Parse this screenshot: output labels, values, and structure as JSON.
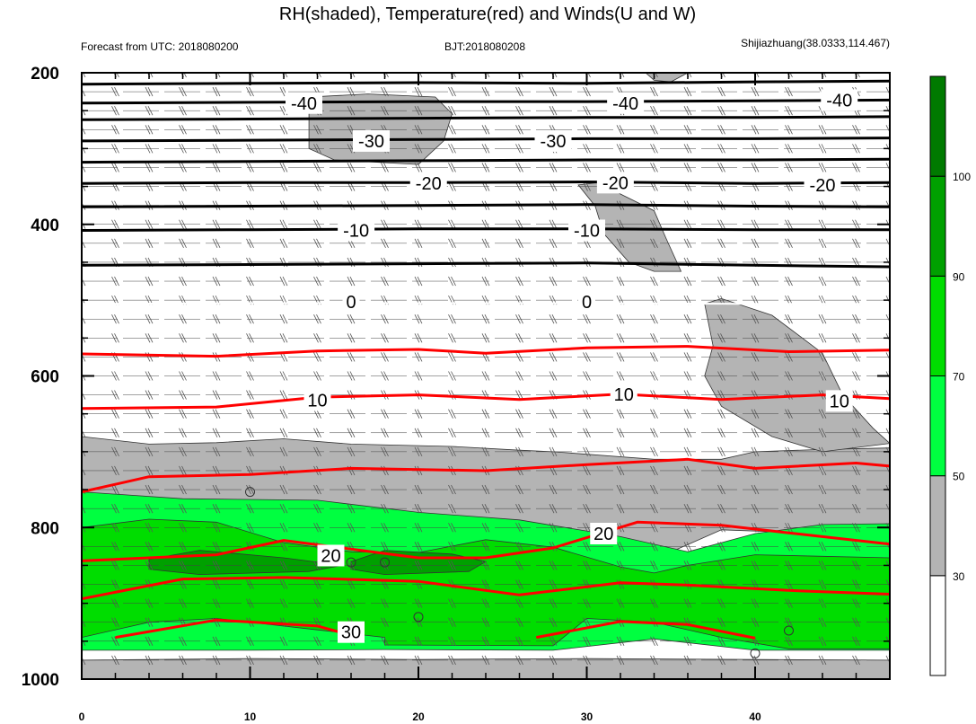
{
  "chart_data": {
    "type": "heatmap",
    "title": "RH(shaded), Temperature(red) and Winds(U and W)",
    "subtitle_left": "Forecast from UTC: 2018080200",
    "subtitle_center": "BJT:2018080208",
    "subtitle_right": "Shijiazhuang(38.0333,114.467)",
    "x_ticks": [
      "0",
      "10",
      "20",
      "30",
      "40"
    ],
    "x_tick_values": [
      0,
      10,
      20,
      30,
      40
    ],
    "xlim": [
      0,
      48
    ],
    "y_ticks": [
      "200",
      "400",
      "600",
      "800",
      "1000"
    ],
    "y_tick_values": [
      200,
      400,
      600,
      800,
      1000
    ],
    "ylim": [
      200,
      1000
    ],
    "y_inverted": true,
    "colorbar": {
      "labels": [
        "30",
        "50",
        "70",
        "90",
        "100"
      ],
      "label_values": [
        30,
        50,
        70,
        90,
        100
      ],
      "bins": [
        {
          "min": 0,
          "max": 30,
          "color": "#ffffff"
        },
        {
          "min": 30,
          "max": 50,
          "color": "#b4b4b4"
        },
        {
          "min": 50,
          "max": 70,
          "color": "#00ff40"
        },
        {
          "min": 70,
          "max": 90,
          "color": "#00dd00"
        },
        {
          "min": 90,
          "max": 100,
          "color": "#00a000"
        },
        {
          "min": 100,
          "max": 110,
          "color": "#007a00"
        }
      ]
    },
    "temperature_contours": [
      {
        "value": -40,
        "color": "#000000",
        "points": [
          [
            0,
            215
          ],
          [
            10,
            214
          ],
          [
            20,
            213
          ],
          [
            30,
            214
          ],
          [
            40,
            212
          ],
          [
            48,
            211
          ]
        ]
      },
      {
        "value": -40,
        "color": "#000000",
        "points": [
          [
            0,
            240
          ],
          [
            10,
            239
          ],
          [
            20,
            238
          ],
          [
            30,
            238
          ],
          [
            40,
            237
          ],
          [
            48,
            236
          ]
        ]
      },
      {
        "value": -40,
        "color": "#000000",
        "points": [
          [
            0,
            262
          ],
          [
            10,
            261
          ],
          [
            20,
            260
          ],
          [
            30,
            259
          ],
          [
            40,
            259
          ],
          [
            48,
            258
          ]
        ]
      },
      {
        "value": -30,
        "color": "#000000",
        "points": [
          [
            0,
            290
          ],
          [
            10,
            289
          ],
          [
            20,
            288
          ],
          [
            30,
            287
          ],
          [
            40,
            287
          ],
          [
            48,
            286
          ]
        ]
      },
      {
        "value": -30,
        "color": "#000000",
        "points": [
          [
            0,
            318
          ],
          [
            10,
            317
          ],
          [
            20,
            316
          ],
          [
            30,
            315
          ],
          [
            40,
            315
          ],
          [
            48,
            314
          ]
        ]
      },
      {
        "value": -20,
        "color": "#000000",
        "points": [
          [
            0,
            346
          ],
          [
            10,
            345
          ],
          [
            20,
            345
          ],
          [
            30,
            344
          ],
          [
            40,
            346
          ],
          [
            48,
            345
          ]
        ]
      },
      {
        "value": -20,
        "color": "#000000",
        "points": [
          [
            0,
            377
          ],
          [
            10,
            376
          ],
          [
            20,
            375
          ],
          [
            30,
            374
          ],
          [
            40,
            376
          ],
          [
            48,
            377
          ]
        ]
      },
      {
        "value": -10,
        "color": "#000000",
        "points": [
          [
            0,
            408
          ],
          [
            10,
            407
          ],
          [
            20,
            406
          ],
          [
            30,
            406
          ],
          [
            40,
            407
          ],
          [
            48,
            407
          ]
        ]
      },
      {
        "value": -10,
        "color": "#000000",
        "points": [
          [
            0,
            454
          ],
          [
            10,
            453
          ],
          [
            20,
            452
          ],
          [
            30,
            451
          ],
          [
            40,
            454
          ],
          [
            48,
            456
          ]
        ]
      },
      {
        "value": 0,
        "color": "#ffffff",
        "points": [
          [
            0,
            505
          ],
          [
            10,
            504
          ],
          [
            20,
            504
          ],
          [
            30,
            504
          ],
          [
            40,
            505
          ],
          [
            48,
            505
          ]
        ]
      },
      {
        "value": 5,
        "color": "#ff0000",
        "points": [
          [
            0,
            571
          ],
          [
            8,
            574
          ],
          [
            14,
            567
          ],
          [
            20,
            565
          ],
          [
            24,
            570
          ],
          [
            30,
            563
          ],
          [
            36,
            561
          ],
          [
            42,
            568
          ],
          [
            48,
            566
          ]
        ]
      },
      {
        "value": 10,
        "color": "#ff0000",
        "points": [
          [
            0,
            643
          ],
          [
            8,
            641
          ],
          [
            14,
            628
          ],
          [
            20,
            625
          ],
          [
            26,
            631
          ],
          [
            32,
            624
          ],
          [
            38,
            631
          ],
          [
            44,
            625
          ],
          [
            48,
            630
          ]
        ]
      },
      {
        "value": 15,
        "color": "#ff0000",
        "points": [
          [
            0,
            753
          ],
          [
            4,
            733
          ],
          [
            10,
            730
          ],
          [
            16,
            722
          ],
          [
            24,
            725
          ],
          [
            30,
            717
          ],
          [
            36,
            710
          ],
          [
            40,
            722
          ],
          [
            46,
            715
          ],
          [
            48,
            719
          ]
        ]
      },
      {
        "value": 20,
        "color": "#ff0000",
        "points": [
          [
            0,
            844
          ],
          [
            8,
            836
          ],
          [
            12,
            817
          ],
          [
            20,
            840
          ],
          [
            24,
            840
          ],
          [
            28,
            827
          ],
          [
            33,
            793
          ],
          [
            38,
            797
          ],
          [
            42,
            807
          ],
          [
            48,
            822
          ]
        ]
      },
      {
        "value": 25,
        "color": "#ff0000",
        "points": [
          [
            0,
            894
          ],
          [
            6,
            868
          ],
          [
            12,
            866
          ],
          [
            20,
            871
          ],
          [
            26,
            889
          ],
          [
            32,
            873
          ],
          [
            36,
            876
          ],
          [
            42,
            883
          ],
          [
            48,
            888
          ]
        ]
      },
      {
        "value": 30,
        "color": "#ff0000",
        "points": [
          [
            2,
            945
          ],
          [
            8,
            922
          ],
          [
            14,
            930
          ],
          [
            16,
            942
          ]
        ]
      },
      {
        "value": 30,
        "color": "#ff0000",
        "points": [
          [
            27,
            945
          ],
          [
            32,
            924
          ],
          [
            36,
            928
          ],
          [
            40,
            946
          ]
        ]
      }
    ],
    "contour_labels": [
      {
        "text": "-40",
        "x": 13.2,
        "p": 240
      },
      {
        "text": "-40",
        "x": 32.3,
        "p": 240
      },
      {
        "text": "-40",
        "x": 45.0,
        "p": 236
      },
      {
        "text": "-30",
        "x": 17.2,
        "p": 290
      },
      {
        "text": "-30",
        "x": 28.0,
        "p": 290
      },
      {
        "text": "-20",
        "x": 20.6,
        "p": 346
      },
      {
        "text": "-20",
        "x": 31.7,
        "p": 345
      },
      {
        "text": "-20",
        "x": 44.0,
        "p": 348
      },
      {
        "text": "-10",
        "x": 16.3,
        "p": 408
      },
      {
        "text": "-10",
        "x": 30.0,
        "p": 408
      },
      {
        "text": "0",
        "x": 16.0,
        "p": 502
      },
      {
        "text": "0",
        "x": 30.0,
        "p": 502
      },
      {
        "text": "10",
        "x": 14.0,
        "p": 632
      },
      {
        "text": "10",
        "x": 32.2,
        "p": 624
      },
      {
        "text": "10",
        "x": 45.0,
        "p": 633
      },
      {
        "text": "20",
        "x": 14.8,
        "p": 837
      },
      {
        "text": "20",
        "x": 31.0,
        "p": 808
      },
      {
        "text": "30",
        "x": 16.0,
        "p": 938
      }
    ],
    "rh_regions": [
      {
        "rh": 40,
        "points": [
          [
            0,
            680
          ],
          [
            4,
            690
          ],
          [
            8,
            688
          ],
          [
            12,
            683
          ],
          [
            16,
            690
          ],
          [
            22,
            693
          ],
          [
            26,
            698
          ],
          [
            28,
            700
          ],
          [
            34,
            710
          ],
          [
            38,
            710
          ],
          [
            40,
            700
          ],
          [
            44,
            697
          ],
          [
            48,
            695
          ],
          [
            48,
            795
          ],
          [
            44,
            808
          ],
          [
            38,
            803
          ],
          [
            34,
            842
          ],
          [
            28,
            813
          ],
          [
            24,
            803
          ],
          [
            16,
            781
          ],
          [
            10,
            776
          ],
          [
            4,
            768
          ],
          [
            0,
            753
          ]
        ]
      },
      {
        "rh": 40,
        "points": [
          [
            13.5,
            232
          ],
          [
            17,
            228
          ],
          [
            21,
            232
          ],
          [
            22,
            254
          ],
          [
            21.5,
            290
          ],
          [
            20,
            321
          ],
          [
            15,
            315
          ],
          [
            13.5,
            300
          ]
        ]
      },
      {
        "rh": 40,
        "points": [
          [
            29.5,
            348
          ],
          [
            31,
            344
          ],
          [
            32,
            360
          ],
          [
            34,
            382
          ],
          [
            34.7,
            418
          ],
          [
            35.6,
            462
          ],
          [
            34,
            462
          ],
          [
            32.5,
            450
          ],
          [
            31,
            412
          ],
          [
            30.5,
            376
          ]
        ]
      },
      {
        "rh": 40,
        "points": [
          [
            37,
            505
          ],
          [
            38,
            498
          ],
          [
            41,
            520
          ],
          [
            44,
            570
          ],
          [
            45.2,
            625
          ],
          [
            47,
            669
          ],
          [
            48,
            689
          ],
          [
            44,
            700
          ],
          [
            41,
            680
          ],
          [
            38,
            640
          ],
          [
            37,
            600
          ],
          [
            37.5,
            560
          ]
        ]
      },
      {
        "rh": 40,
        "points": [
          [
            33.5,
            200
          ],
          [
            36,
            200
          ],
          [
            35,
            212
          ],
          [
            34,
            210
          ]
        ]
      },
      {
        "rh": 40,
        "points": [
          [
            0,
            975
          ],
          [
            10,
            973
          ],
          [
            20,
            974
          ],
          [
            30,
            973
          ],
          [
            40,
            974
          ],
          [
            48,
            975
          ],
          [
            48,
            1000
          ],
          [
            0,
            1000
          ]
        ]
      },
      {
        "rh": 60,
        "points": [
          [
            0,
            753
          ],
          [
            6,
            762
          ],
          [
            14,
            764
          ],
          [
            20,
            780
          ],
          [
            26,
            790
          ],
          [
            32,
            812
          ],
          [
            36,
            832
          ],
          [
            40,
            808
          ],
          [
            44,
            796
          ],
          [
            48,
            795
          ],
          [
            48,
            962
          ],
          [
            40,
            962
          ],
          [
            34,
            947
          ],
          [
            28,
            962
          ],
          [
            18,
            961
          ],
          [
            10,
            962
          ],
          [
            0,
            962
          ]
        ]
      },
      {
        "rh": 80,
        "points": [
          [
            0,
            800
          ],
          [
            4,
            789
          ],
          [
            8,
            793
          ],
          [
            12,
            820
          ],
          [
            16,
            832
          ],
          [
            20,
            833
          ],
          [
            24,
            816
          ],
          [
            28,
            826
          ],
          [
            32,
            852
          ],
          [
            34,
            860
          ],
          [
            36,
            850
          ],
          [
            40,
            836
          ],
          [
            44,
            838
          ],
          [
            48,
            840
          ],
          [
            48,
            960
          ],
          [
            42,
            960
          ],
          [
            38,
            945
          ],
          [
            34,
            925
          ],
          [
            30,
            920
          ],
          [
            28,
            956
          ],
          [
            18,
            955
          ],
          [
            18,
            945
          ],
          [
            14,
            935
          ],
          [
            8,
            920
          ],
          [
            4,
            925
          ],
          [
            0,
            945
          ]
        ]
      },
      {
        "rh": 95,
        "points": [
          [
            4,
            842
          ],
          [
            7,
            830
          ],
          [
            12,
            840
          ],
          [
            15.5,
            850
          ],
          [
            13.5,
            858
          ],
          [
            7,
            862
          ],
          [
            4,
            855
          ]
        ]
      },
      {
        "rh": 95,
        "points": [
          [
            16,
            845
          ],
          [
            18,
            830
          ],
          [
            22,
            835
          ],
          [
            24,
            845
          ],
          [
            23,
            858
          ],
          [
            18,
            862
          ],
          [
            16,
            855
          ]
        ]
      }
    ],
    "circle_markers": [
      {
        "x": 10,
        "p": 753
      },
      {
        "x": 16,
        "p": 846
      },
      {
        "x": 18,
        "p": 846
      },
      {
        "x": 20,
        "p": 918
      },
      {
        "x": 42,
        "p": 936
      },
      {
        "x": 40,
        "p": 966
      }
    ],
    "wind_levels": [
      200,
      225,
      250,
      275,
      300,
      325,
      350,
      375,
      400,
      425,
      450,
      475,
      500,
      525,
      550,
      575,
      600,
      625,
      650,
      675,
      700,
      725,
      750,
      775,
      800,
      825,
      850,
      875,
      900,
      925,
      950,
      975
    ],
    "wind_x_step": 2
  }
}
